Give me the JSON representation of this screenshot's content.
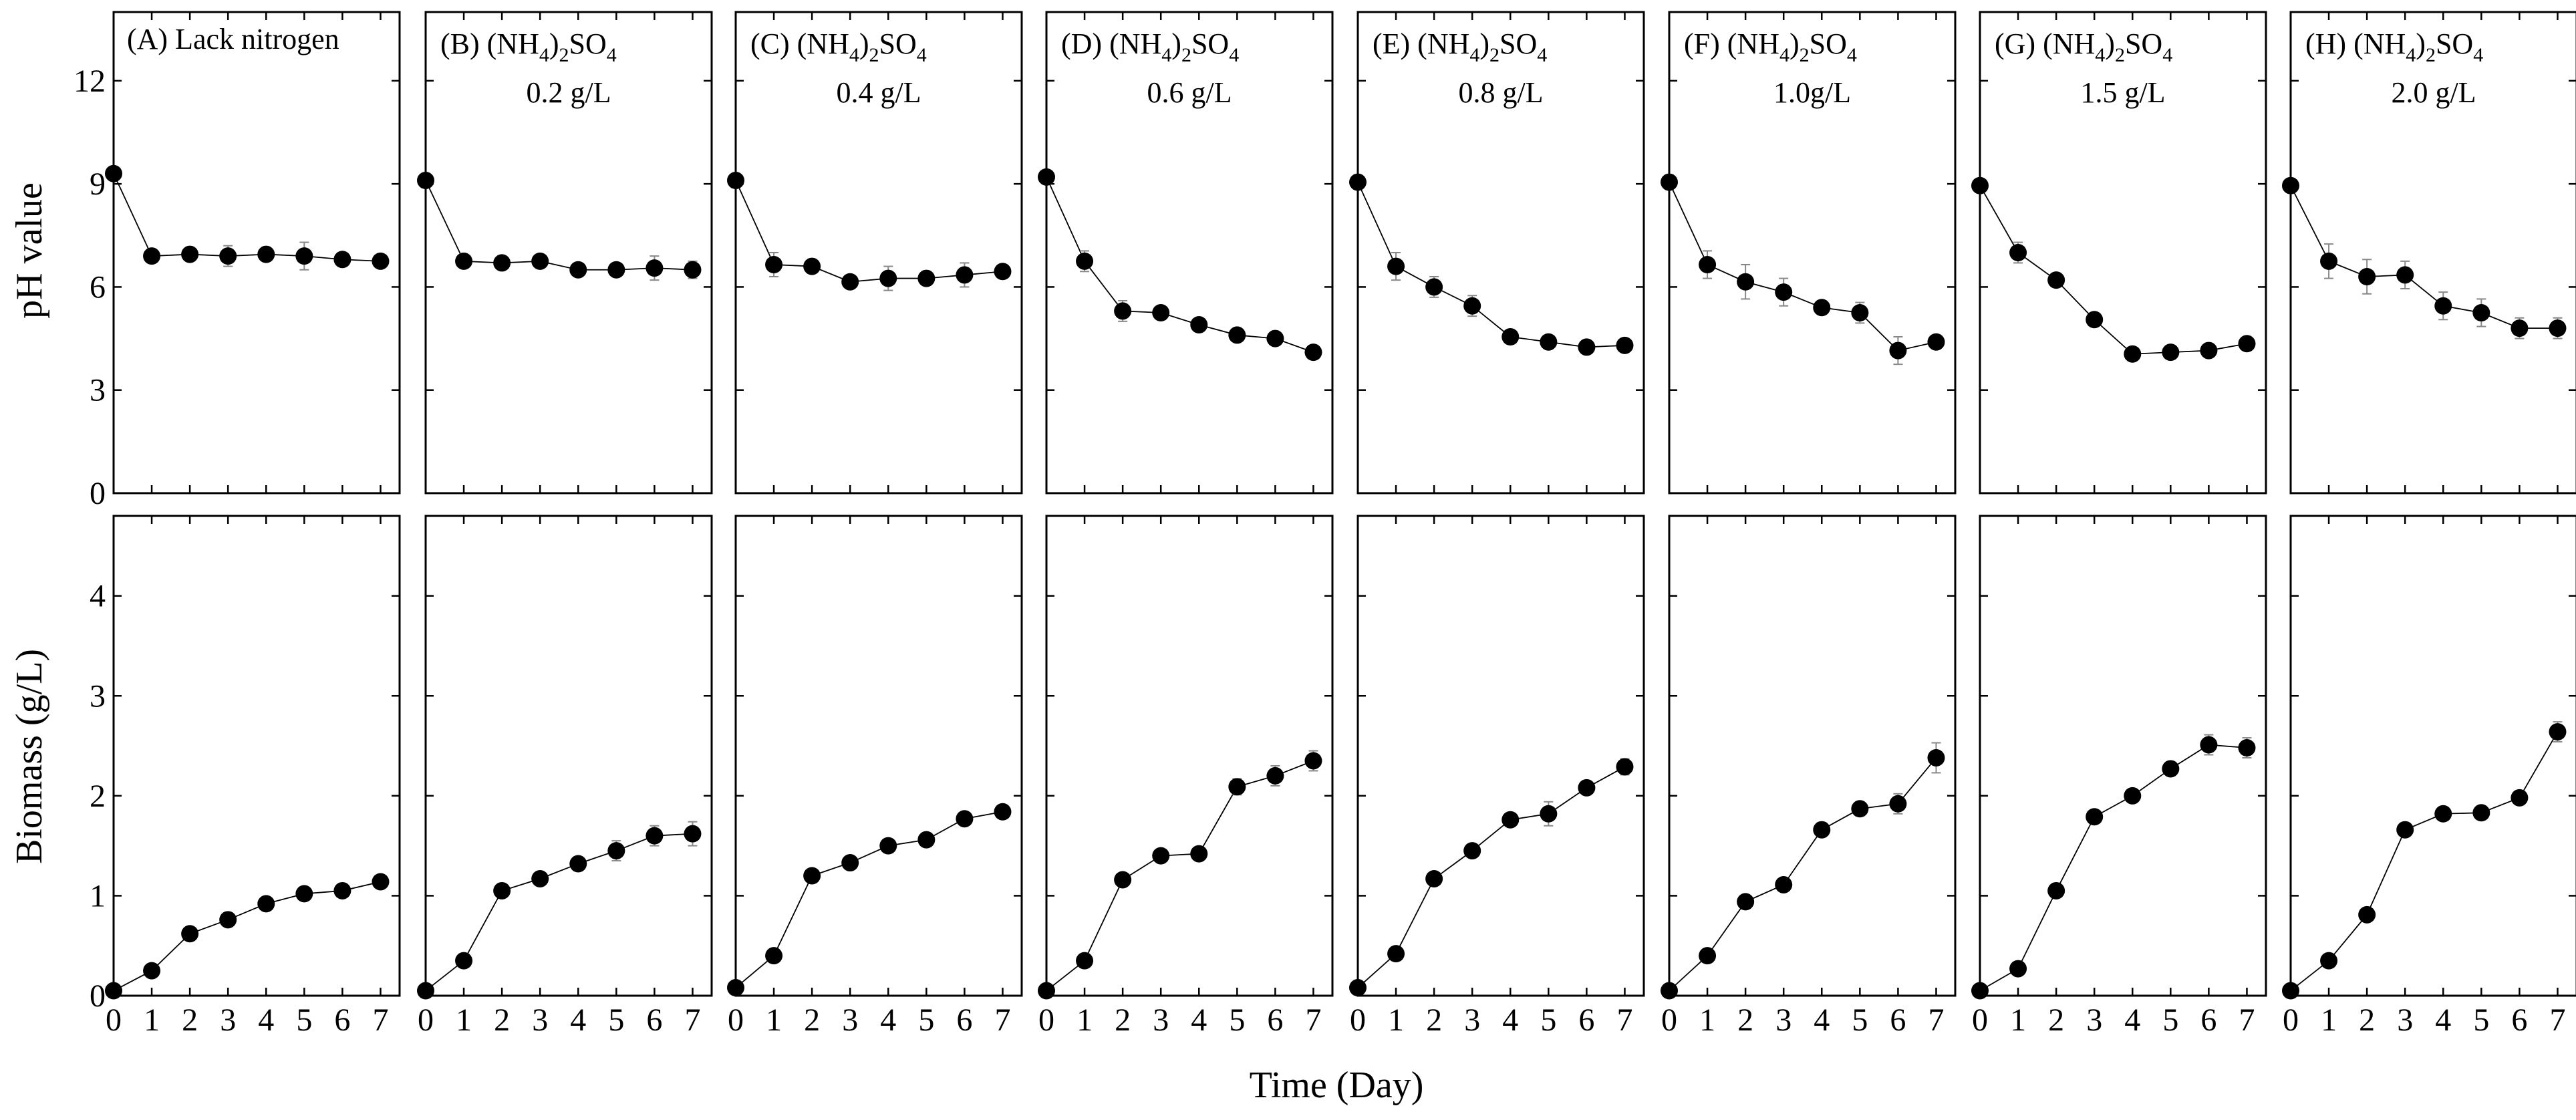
{
  "chart_data": {
    "type": "line",
    "layout": "2 rows x 8 panel grid",
    "xlabel": "Time (Day)",
    "x": [
      0,
      1,
      2,
      3,
      4,
      5,
      6,
      7
    ],
    "x_ticks": [
      "0",
      "1",
      "2",
      "3",
      "4",
      "5",
      "6",
      "7"
    ],
    "xlim": [
      0,
      7.5
    ],
    "rows": [
      {
        "ylabel": "pH value",
        "ylim": [
          0,
          14
        ],
        "y_ticks": [
          "0",
          "3",
          "6",
          "9",
          "12"
        ],
        "y_tick_values": [
          0,
          3,
          6,
          9,
          12
        ]
      },
      {
        "ylabel": "Biomass (g/L)",
        "ylim": [
          0,
          4.8
        ],
        "y_ticks": [
          "0",
          "1",
          "2",
          "3",
          "4"
        ],
        "y_tick_values": [
          0,
          1,
          2,
          3,
          4
        ]
      }
    ],
    "panels": [
      {
        "label": "(A) Lack nitrogen",
        "sub": "",
        "concentration": "",
        "ph": [
          9.3,
          6.9,
          6.95,
          6.9,
          6.95,
          6.9,
          6.8,
          6.75
        ],
        "ph_err": [
          0.2,
          0.15,
          0.15,
          0.3,
          0.15,
          0.4,
          0.2,
          0.15
        ],
        "biomass": [
          0.05,
          0.25,
          0.62,
          0.76,
          0.92,
          1.02,
          1.05,
          1.14
        ],
        "biomass_err": [
          0.02,
          0.03,
          0.04,
          0.04,
          0.05,
          0.05,
          0.05,
          0.05
        ]
      },
      {
        "label": "(B) (NH",
        "sub": "4",
        "concentration": "0.2 g/L",
        "ph": [
          9.1,
          6.75,
          6.7,
          6.75,
          6.5,
          6.5,
          6.55,
          6.5
        ],
        "ph_err": [
          0.2,
          0.15,
          0.15,
          0.2,
          0.15,
          0.15,
          0.35,
          0.25
        ],
        "biomass": [
          0.05,
          0.35,
          1.05,
          1.17,
          1.32,
          1.45,
          1.6,
          1.62
        ],
        "biomass_err": [
          0.02,
          0.04,
          0.05,
          0.07,
          0.07,
          0.1,
          0.1,
          0.12
        ]
      },
      {
        "label": "(C) (NH",
        "sub": "4",
        "concentration": "0.4 g/L",
        "ph": [
          9.1,
          6.65,
          6.6,
          6.15,
          6.25,
          6.25,
          6.35,
          6.45
        ],
        "ph_err": [
          0.2,
          0.35,
          0.15,
          0.15,
          0.35,
          0.2,
          0.35,
          0.15
        ],
        "biomass": [
          0.08,
          0.4,
          1.2,
          1.33,
          1.5,
          1.56,
          1.77,
          1.84
        ],
        "biomass_err": [
          0.02,
          0.04,
          0.05,
          0.05,
          0.05,
          0.05,
          0.05,
          0.05
        ]
      },
      {
        "label": "(D) (NH",
        "sub": "4",
        "concentration": "0.6 g/L",
        "ph": [
          9.2,
          6.75,
          5.3,
          5.25,
          4.9,
          4.6,
          4.5,
          4.1
        ],
        "ph_err": [
          0.2,
          0.3,
          0.3,
          0.2,
          0.15,
          0.15,
          0.15,
          0.15
        ],
        "biomass": [
          0.05,
          0.35,
          1.16,
          1.4,
          1.42,
          2.09,
          2.2,
          2.35
        ],
        "biomass_err": [
          0.02,
          0.04,
          0.05,
          0.05,
          0.05,
          0.08,
          0.1,
          0.1
        ]
      },
      {
        "label": "(E) (NH",
        "sub": "4",
        "concentration": "0.8 g/L",
        "ph": [
          9.05,
          6.6,
          6.0,
          5.45,
          4.55,
          4.4,
          4.25,
          4.3
        ],
        "ph_err": [
          0.2,
          0.4,
          0.3,
          0.3,
          0.2,
          0.15,
          0.15,
          0.2
        ],
        "biomass": [
          0.08,
          0.42,
          1.17,
          1.45,
          1.76,
          1.82,
          2.08,
          2.29
        ],
        "biomass_err": [
          0.02,
          0.04,
          0.05,
          0.06,
          0.05,
          0.12,
          0.07,
          0.08
        ]
      },
      {
        "label": "(F) (NH",
        "sub": "4",
        "concentration": "1.0g/L",
        "ph": [
          9.05,
          6.65,
          6.15,
          5.85,
          5.4,
          5.25,
          4.15,
          4.4
        ],
        "ph_err": [
          0.2,
          0.4,
          0.5,
          0.4,
          0.2,
          0.3,
          0.4,
          0.2
        ],
        "biomass": [
          0.05,
          0.4,
          0.94,
          1.11,
          1.66,
          1.87,
          1.92,
          2.38
        ],
        "biomass_err": [
          0.02,
          0.04,
          0.05,
          0.06,
          0.07,
          0.07,
          0.1,
          0.15
        ]
      },
      {
        "label": "(G) (NH",
        "sub": "4",
        "concentration": "1.5 g/L",
        "ph": [
          8.95,
          7.0,
          6.2,
          5.05,
          4.05,
          4.1,
          4.15,
          4.35
        ],
        "ph_err": [
          0.2,
          0.3,
          0.15,
          0.15,
          0.1,
          0.1,
          0.15,
          0.15
        ],
        "biomass": [
          0.05,
          0.27,
          1.05,
          1.79,
          2.0,
          2.27,
          2.51,
          2.48
        ],
        "biomass_err": [
          0.02,
          0.03,
          0.05,
          0.05,
          0.07,
          0.07,
          0.1,
          0.1
        ]
      },
      {
        "label": "(H) (NH",
        "sub": "4",
        "concentration": "2.0 g/L",
        "ph": [
          8.95,
          6.75,
          6.3,
          6.35,
          5.45,
          5.25,
          4.8,
          4.8
        ],
        "ph_err": [
          0.2,
          0.5,
          0.5,
          0.4,
          0.4,
          0.4,
          0.3,
          0.3
        ],
        "biomass": [
          0.05,
          0.35,
          0.81,
          1.66,
          1.82,
          1.83,
          1.98,
          2.64
        ],
        "biomass_err": [
          0.02,
          0.03,
          0.05,
          0.06,
          0.06,
          0.06,
          0.07,
          0.1
        ]
      }
    ],
    "formula_rest": {
      "paren": ")",
      "two": "2",
      "so": "SO",
      "four": "4"
    }
  }
}
